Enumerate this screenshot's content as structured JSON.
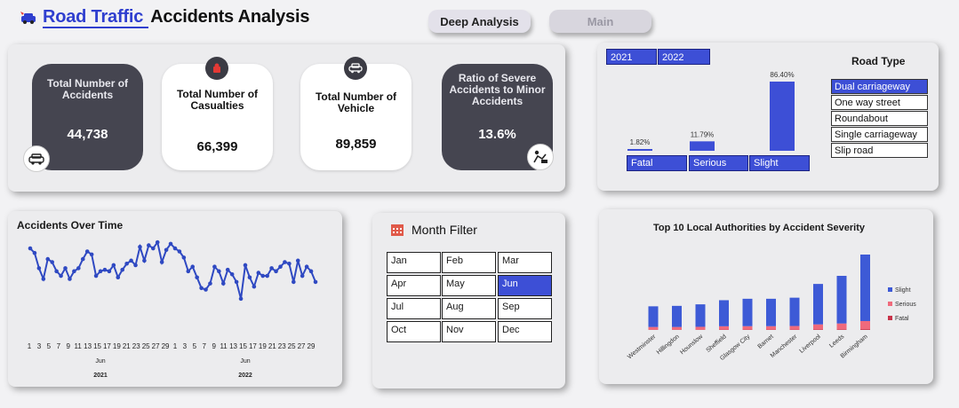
{
  "header": {
    "title_accent": "Road Traffic",
    "title_rest": "Accidents Analysis"
  },
  "nav": {
    "deep": "Deep Analysis",
    "main": "Main"
  },
  "kpis": [
    {
      "label": "Total Number  of Accidents",
      "value": "44,738"
    },
    {
      "label": "Total Number of Casualties",
      "value": "66,399"
    },
    {
      "label": "Total Number of Vehicle",
      "value": "89,859"
    },
    {
      "label": "Ratio of Severe Accidents to Minor Accidents",
      "value": "13.6%"
    }
  ],
  "years": [
    "2021",
    "2022"
  ],
  "severity": {
    "labels": [
      "Fatal",
      "Serious",
      "Slight"
    ],
    "pct_labels": [
      "1.82%",
      "11.79%",
      "86.40%"
    ],
    "values": [
      1.82,
      11.79,
      86.4
    ],
    "color": "#3d4fd6"
  },
  "road_type": {
    "title": "Road Type",
    "items": [
      "Dual carriageway",
      "One way street",
      "Roundabout",
      "Single carriageway",
      "Slip road"
    ],
    "selected": 0
  },
  "month_filter": {
    "title": "Month Filter",
    "months": [
      "Jan",
      "Feb",
      "Mar",
      "Apr",
      "May",
      "Jun",
      "Jul",
      "Aug",
      "Sep",
      "Oct",
      "Nov",
      "Dec"
    ],
    "selected": 5
  },
  "chart_data": [
    {
      "type": "line",
      "title": "Accidents Over Time",
      "x_tick_labels": [
        "1",
        "3",
        "5",
        "7",
        "9",
        "11",
        "13",
        "15",
        "17",
        "19",
        "21",
        "23",
        "25",
        "27",
        "29",
        "1",
        "3",
        "5",
        "7",
        "9",
        "11",
        "13",
        "15",
        "17",
        "19",
        "21",
        "23",
        "25",
        "27",
        "29"
      ],
      "month_labels": [
        "Jun",
        "Jun"
      ],
      "year_labels": [
        "2021",
        "2022"
      ],
      "series": [
        {
          "values": [
            71,
            68,
            58,
            51,
            64,
            62,
            56,
            53,
            58,
            51,
            56,
            58,
            64,
            69,
            67,
            53,
            56,
            57,
            56,
            60,
            52,
            57,
            61,
            63,
            60,
            72,
            63,
            73,
            71,
            75,
            62,
            70,
            74,
            71,
            69,
            65,
            56,
            59,
            52,
            45,
            44,
            48,
            59,
            56,
            48,
            57,
            54,
            49,
            38,
            60,
            52,
            46,
            55,
            53,
            53,
            58,
            56,
            59,
            62,
            61,
            49,
            63,
            53,
            59,
            56,
            49
          ]
        }
      ],
      "color": "#2f49c2"
    },
    {
      "type": "bar",
      "stacked": true,
      "title": "Top 10 Local Authorities by Accident Severity",
      "categories": [
        "Westminster",
        "Hillingdon",
        "Hounslow",
        "Sheffield",
        "Glasgow City",
        "Barnet",
        "Manchester",
        "Liverpool",
        "Leeds",
        "Birmingham"
      ],
      "series": [
        {
          "name": "Slight",
          "values": [
            230,
            235,
            250,
            290,
            305,
            305,
            315,
            450,
            530,
            740
          ],
          "color": "#3d5ad6"
        },
        {
          "name": "Serious",
          "values": [
            30,
            30,
            32,
            37,
            38,
            38,
            40,
            56,
            65,
            90
          ],
          "color": "#f06a7c"
        },
        {
          "name": "Fatal",
          "values": [
            3,
            3,
            3,
            4,
            4,
            4,
            4,
            6,
            7,
            9
          ],
          "color": "#c8334a"
        }
      ]
    }
  ]
}
